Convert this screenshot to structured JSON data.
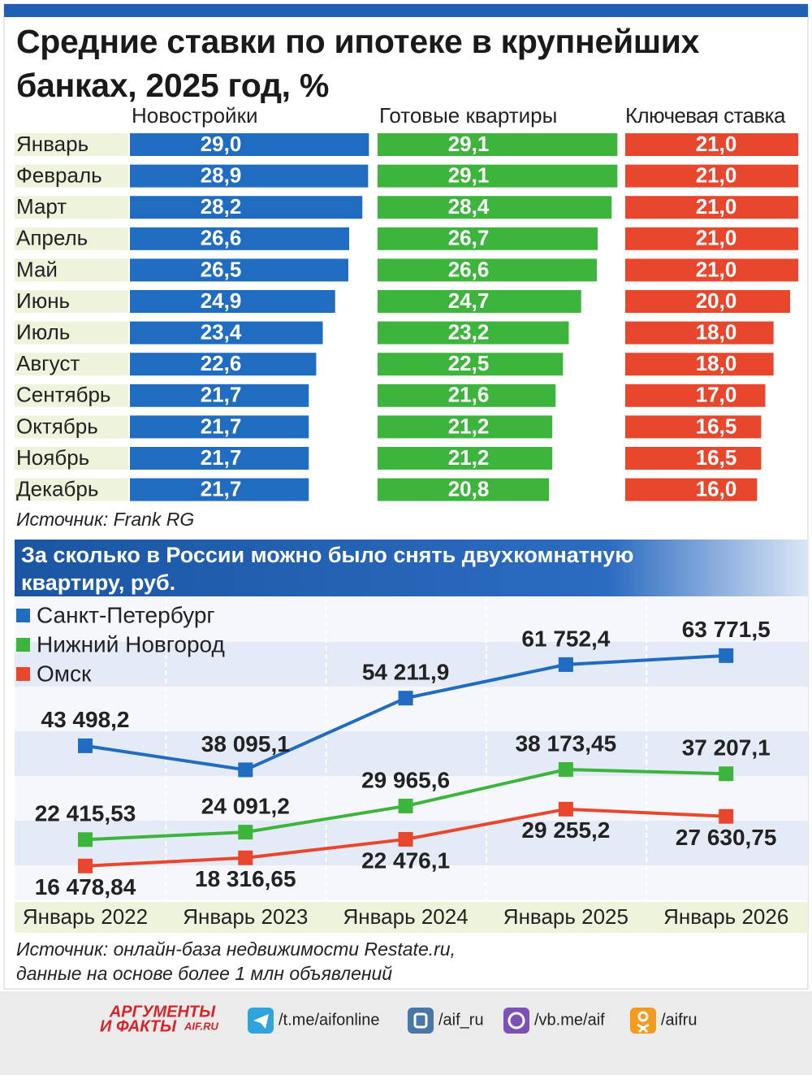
{
  "chart_data": [
    {
      "type": "bar",
      "title": "Средние ставки по ипотеке в крупнейших банках, 2025 год, %",
      "categories": [
        "Январь",
        "Февраль",
        "Март",
        "Апрель",
        "Май",
        "Июнь",
        "Июль",
        "Август",
        "Сентябрь",
        "Октябрь",
        "Ноябрь",
        "Декабрь"
      ],
      "series": [
        {
          "name": "Новостройки",
          "color": "#1f6cc1",
          "values": [
            29.0,
            28.9,
            28.2,
            26.6,
            26.5,
            24.9,
            23.4,
            22.6,
            21.7,
            21.7,
            21.7,
            21.7
          ],
          "value_labels": [
            "29,0",
            "28,9",
            "28,2",
            "26,6",
            "26,5",
            "24,9",
            "23,4",
            "22,6",
            "21,7",
            "21,7",
            "21,7",
            "21,7"
          ]
        },
        {
          "name": "Готовые квартиры",
          "color": "#3db53d",
          "values": [
            29.1,
            29.1,
            28.4,
            26.7,
            26.6,
            24.7,
            23.2,
            22.5,
            21.6,
            21.2,
            21.2,
            20.8
          ],
          "value_labels": [
            "29,1",
            "29,1",
            "28,4",
            "26,7",
            "26,6",
            "24,7",
            "23,2",
            "22,5",
            "21,6",
            "21,2",
            "21,2",
            "20,8"
          ]
        },
        {
          "name": "Ключевая ставка",
          "color": "#e8472d",
          "values": [
            21.0,
            21.0,
            21.0,
            21.0,
            21.0,
            20.0,
            18.0,
            18.0,
            17.0,
            16.5,
            16.5,
            16.0
          ],
          "value_labels": [
            "21,0",
            "21,0",
            "21,0",
            "21,0",
            "21,0",
            "20,0",
            "18,0",
            "18,0",
            "17,0",
            "16,5",
            "16,5",
            "16,0"
          ]
        }
      ],
      "source": [
        "Источник: Frank RG"
      ]
    },
    {
      "type": "line",
      "title": "За сколько в России можно было снять двухкомнатную квартиру, руб.",
      "categories": [
        "Январь 2022",
        "Январь 2023",
        "Январь 2024",
        "Январь 2025",
        "Январь 2026"
      ],
      "series": [
        {
          "name": "Санкт-Петербург",
          "color": "#1f6cc1",
          "values": [
            43498.2,
            38095.1,
            54211.9,
            61752.4,
            63771.5
          ],
          "value_labels": [
            "43 498,2",
            "38 095,1",
            "54 211,9",
            "61 752,4",
            "63 771,5"
          ]
        },
        {
          "name": "Нижний Новгород",
          "color": "#3db53d",
          "values": [
            22415.53,
            24091.2,
            29965.6,
            38173.45,
            37207.1
          ],
          "value_labels": [
            "22 415,53",
            "24 091,2",
            "29 965,6",
            "38 173,45",
            "37 207,1"
          ]
        },
        {
          "name": "Омск",
          "color": "#e8472d",
          "values": [
            16478.84,
            18316.65,
            22476.1,
            29255.2,
            27630.75
          ],
          "value_labels": [
            "16 478,84",
            "18 316,65",
            "22 476,1",
            "29 255,2",
            "27 630,75"
          ]
        }
      ],
      "source": [
        "Источник: онлайн-база недвижимости Restate.ru,",
        "данные на основе более 1 млн объявлений"
      ]
    }
  ],
  "footer": {
    "logo": [
      "АРГУМЕНТЫ",
      "И ФАКТЫ",
      "AIF.RU"
    ],
    "links": [
      "/t.me/aifonline",
      "/aif_ru",
      "/vb.me/aif",
      "/aifru"
    ]
  }
}
